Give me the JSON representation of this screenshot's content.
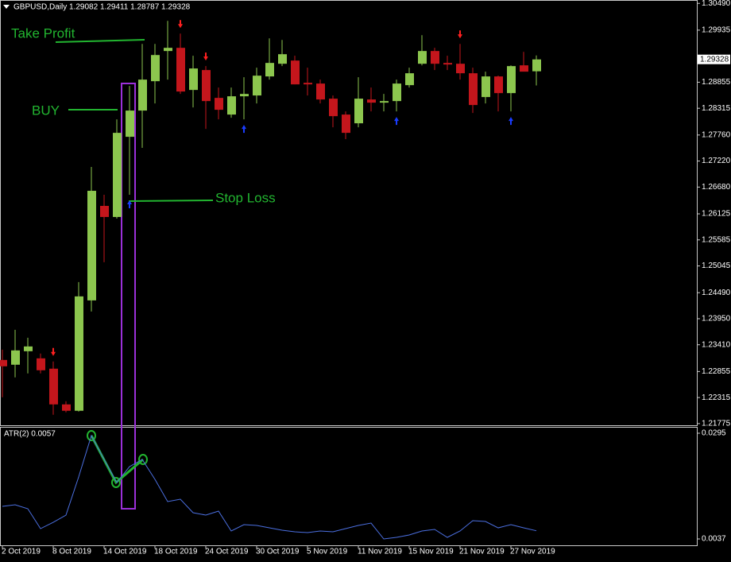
{
  "chart_data": [
    {
      "type": "candlestick",
      "title": "GBPUSD,Daily  1.29082 1.29411 1.28787 1.29328",
      "categories": [
        "2 Oct 2019",
        null,
        null,
        null,
        "8 Oct 2019",
        null,
        null,
        null,
        "14 Oct 2019",
        null,
        null,
        null,
        "18 Oct 2019",
        null,
        null,
        null,
        "24 Oct 2019",
        null,
        null,
        null,
        "30 Oct 2019",
        null,
        null,
        null,
        "5 Nov 2019",
        null,
        null,
        null,
        "11 Nov 2019",
        null,
        null,
        null,
        "15 Nov 2019",
        null,
        null,
        null,
        "21 Nov 2019",
        null,
        null,
        null,
        "27 Nov 2019",
        null,
        null
      ],
      "open": [
        1.23095,
        1.22996,
        1.23276,
        1.23128,
        1.22914,
        1.22173,
        1.22041,
        1.2433,
        1.2629,
        1.2606,
        1.27723,
        1.28267,
        1.28876,
        1.29502,
        1.29568,
        1.28695,
        1.29107,
        1.2853,
        1.28184,
        1.28563,
        1.2858,
        1.28975,
        1.29238,
        1.29304,
        1.28843,
        1.28827,
        1.28514,
        1.28184,
        1.28003,
        1.28497,
        1.28431,
        1.28464,
        1.28794,
        1.29238,
        1.29502,
        1.29255,
        1.29238,
        1.29041,
        1.28547,
        1.28975,
        1.28629,
        1.29205,
        1.29082
      ],
      "high": [
        1.23309,
        1.23721,
        1.23556,
        1.23227,
        1.23062,
        1.22239,
        1.24709,
        1.27097,
        1.26521,
        1.28085,
        1.28777,
        1.2965,
        1.2965,
        1.30128,
        1.29864,
        1.29403,
        1.29189,
        1.28744,
        1.28744,
        1.28958,
        1.29156,
        1.29765,
        1.29732,
        1.29403,
        1.29156,
        1.28909,
        1.2858,
        1.2825,
        1.28958,
        1.28744,
        1.28612,
        1.28909,
        1.29156,
        1.29831,
        1.29568,
        1.29403,
        1.2965,
        1.29156,
        1.29074,
        1.28991,
        1.29205,
        1.29485,
        1.29411
      ],
      "low": [
        1.22321,
        1.22733,
        1.22815,
        1.22815,
        1.21959,
        1.22008,
        1.22024,
        1.241,
        1.25121,
        1.26027,
        1.26521,
        1.27493,
        1.28415,
        1.28909,
        1.28612,
        1.28332,
        1.27888,
        1.28085,
        1.28118,
        1.28085,
        1.28415,
        1.28909,
        1.29189,
        1.2881,
        1.2858,
        1.28415,
        1.27921,
        1.27674,
        1.27921,
        1.2825,
        1.2825,
        1.2825,
        1.28744,
        1.29205,
        1.29107,
        1.29107,
        1.28909,
        1.28217,
        1.28415,
        1.2825,
        1.2825,
        1.29107,
        1.28787
      ],
      "close": [
        1.22963,
        1.23293,
        1.23375,
        1.22881,
        1.22173,
        1.22041,
        1.24413,
        1.26603,
        1.2606,
        1.27805,
        1.28267,
        1.28909,
        1.29419,
        1.29568,
        1.28662,
        1.2914,
        1.28464,
        1.28283,
        1.28563,
        1.28612,
        1.28991,
        1.29255,
        1.29436,
        1.2881,
        1.2881,
        1.28497,
        1.28151,
        1.27805,
        1.28514,
        1.28431,
        1.28464,
        1.28827,
        1.29041,
        1.29502,
        1.29238,
        1.29222,
        1.29041,
        1.28382,
        1.28975,
        1.28629,
        1.29189,
        1.29074,
        1.29328
      ],
      "up_color": "#8cc64e",
      "down_color": "#c4161c",
      "down_fractals": [
        4,
        14,
        16,
        36
      ],
      "up_fractals": [
        10,
        19,
        31,
        40
      ],
      "down_fractal_color": "#ff2020",
      "up_fractal_color": "#1a3cff",
      "last_price": 1.29328,
      "ylim": [
        1.2174,
        1.3056
      ],
      "yticks": [
        {
          "value": 1.3049,
          "label": "1.30490"
        },
        1.29935,
        {
          "value": 1.28855,
          "label": "1.28855"
        },
        1.28315,
        {
          "value": 1.2776,
          "label": "1.27760"
        },
        {
          "value": 1.2722,
          "label": "1.27220"
        },
        {
          "value": 1.2668,
          "label": "1.26680"
        },
        1.26125,
        1.25585,
        1.25045,
        {
          "value": 1.2449,
          "label": "1.24490"
        },
        {
          "value": 1.2395,
          "label": "1.23950"
        },
        {
          "value": 1.2341,
          "label": "1.23410"
        },
        1.22855,
        1.22315,
        1.21775
      ],
      "annotations": [
        "Take Profit",
        "BUY",
        "Stop Loss"
      ]
    },
    {
      "type": "line",
      "title": "ATR(2) 0.0057",
      "color": "#4b6fe0",
      "values": [
        0.01165,
        0.01204,
        0.01107,
        0.00622,
        0.00777,
        0.00952,
        0.01883,
        0.02892,
        0.0231,
        0.01747,
        0.02135,
        0.0231,
        0.01825,
        0.01282,
        0.0134,
        0.0101,
        0.00952,
        0.01049,
        0.00564,
        0.00719,
        0.007,
        0.00641,
        0.00583,
        0.00544,
        0.00525,
        0.00564,
        0.00544,
        0.00622,
        0.007,
        0.00758,
        0.0037,
        0.00409,
        0.00467,
        0.00564,
        0.00603,
        0.00409,
        0.00564,
        0.00816,
        0.00797,
        0.00641,
        0.00719,
        0.00641,
        0.0057
      ],
      "ylim": [
        0.00215,
        0.03105
      ],
      "yticks": [
        0.0295,
        0.0037
      ]
    }
  ]
}
